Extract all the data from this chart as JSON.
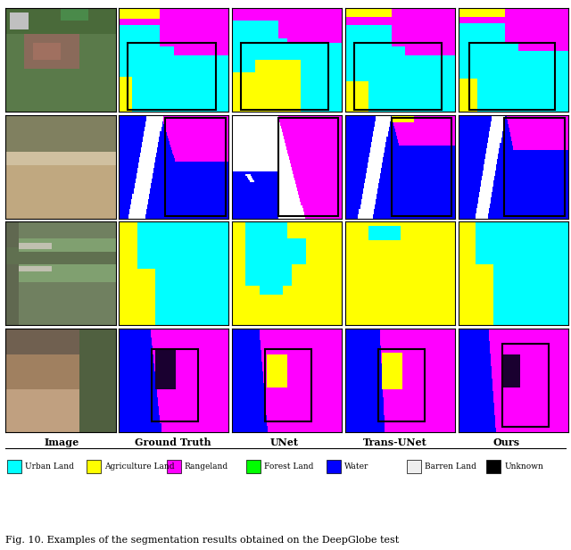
{
  "title": "Fig. 10. Examples of the segmentation results obtained on the DeepGlobe test",
  "column_headers": [
    "Image",
    "Ground Truth",
    "UNet",
    "Trans-UNet",
    "Ours"
  ],
  "colors": {
    "cyan": "#00FFFF",
    "yellow": "#FFFF00",
    "magenta": "#FF00FF",
    "green": "#00FF00",
    "blue": "#0000FF",
    "white": "#FFFFFF",
    "black": "#000000",
    "barren": "#EEEEEE",
    "orange": "#FF8C00"
  },
  "legend_items": [
    {
      "label": "Urban Land",
      "color": "#00FFFF"
    },
    {
      "label": "Agriculture Land",
      "color": "#FFFF00"
    },
    {
      "label": "Rangeland",
      "color": "#FF00FF"
    },
    {
      "label": "Forest Land",
      "color": "#00FF00"
    },
    {
      "label": "Water",
      "color": "#0000FF"
    },
    {
      "label": "Barren Land",
      "color": "#EEEEEE"
    },
    {
      "label": "Unknown",
      "color": "#000000"
    }
  ],
  "bg_color": "#FFFFFF",
  "figure_width": 6.4,
  "figure_height": 6.16
}
